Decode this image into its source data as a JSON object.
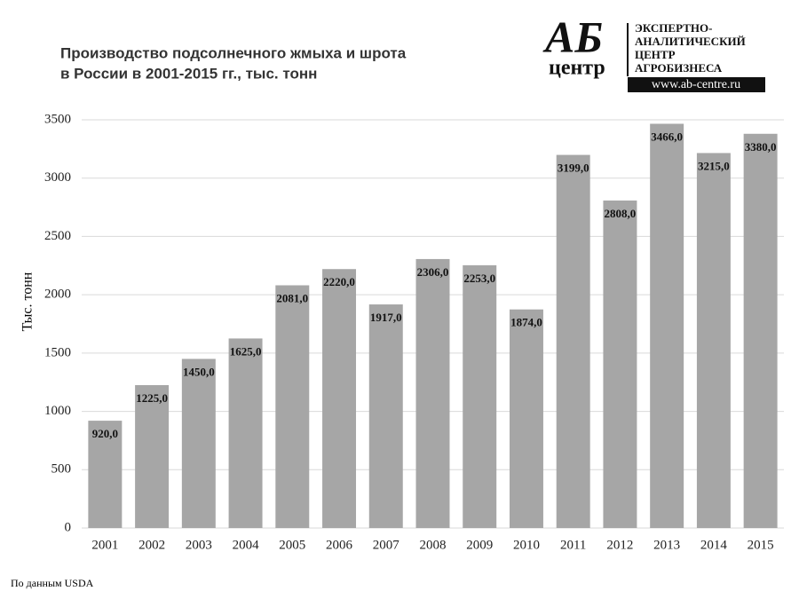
{
  "chart_data": {
    "type": "bar",
    "title": [
      "Производство подсолнечного жмыха и шрота",
      "в России в 2001-2015 гг., тыс. тонн"
    ],
    "y_label": "Тыс. тонн",
    "source": "По данным USDA",
    "categories": [
      "2001",
      "2002",
      "2003",
      "2004",
      "2005",
      "2006",
      "2007",
      "2008",
      "2009",
      "2010",
      "2011",
      "2012",
      "2013",
      "2014",
      "2015"
    ],
    "values": [
      920,
      1225,
      1450,
      1625,
      2081,
      2220,
      1917,
      2306,
      2253,
      1874,
      3199,
      2808,
      3466,
      3215,
      3380
    ],
    "value_labels": [
      "920,0",
      "1225,0",
      "1450,0",
      "1625,0",
      "2081,0",
      "2220,0",
      "1917,0",
      "2306,0",
      "2253,0",
      "1874,0",
      "3199,0",
      "2808,0",
      "3466,0",
      "3215,0",
      "3380,0"
    ],
    "color": "#a6a6a6",
    "ylim": [
      0,
      3500
    ],
    "yticks": [
      0,
      500,
      1000,
      1500,
      2000,
      2500,
      3000,
      3500
    ],
    "grid": true
  },
  "logo": {
    "mark": "АБ",
    "sub": "центр",
    "lines": [
      "ЭКСПЕРТНО-",
      "АНАЛИТИЧЕСКИЙ",
      "ЦЕНТР",
      "АГРОБИЗНЕСА"
    ],
    "url": "www.ab-centre.ru"
  }
}
